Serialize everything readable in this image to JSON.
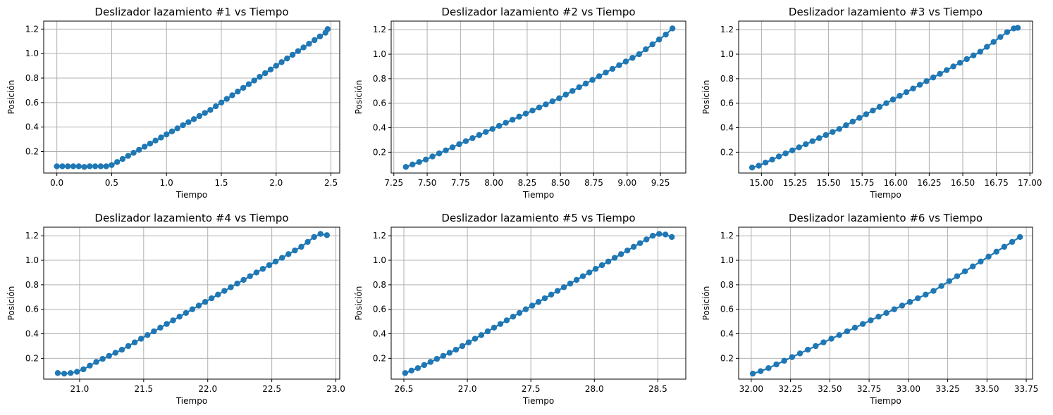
{
  "chart_data": [
    {
      "type": "line",
      "title": "Deslizador lazamiento #1 vs Tiempo",
      "xlabel": "Tiempo",
      "ylabel": "Posición",
      "xlim": [
        -0.12,
        2.58
      ],
      "ylim": [
        0.025,
        1.265
      ],
      "xticks": [
        0.0,
        0.5,
        1.0,
        1.5,
        2.0,
        2.5
      ],
      "xtick_labels": [
        "0.0",
        "0.5",
        "1.0",
        "1.5",
        "2.0",
        "2.5"
      ],
      "yticks": [
        0.2,
        0.4,
        0.6,
        0.8,
        1.0,
        1.2
      ],
      "ytick_labels": [
        "0.2",
        "0.4",
        "0.6",
        "0.8",
        "1.0",
        "1.2"
      ],
      "grid": true,
      "color": "#1f77b4",
      "marker": "circle",
      "series": [
        {
          "x": [
            0.0,
            0.05,
            0.1,
            0.15,
            0.2,
            0.25,
            0.3,
            0.35,
            0.4,
            0.45,
            0.5,
            0.55,
            0.6,
            0.65,
            0.7,
            0.75,
            0.8,
            0.85,
            0.9,
            0.95,
            1.0,
            1.05,
            1.1,
            1.15,
            1.2,
            1.25,
            1.3,
            1.35,
            1.4,
            1.45,
            1.5,
            1.55,
            1.6,
            1.65,
            1.7,
            1.75,
            1.8,
            1.85,
            1.9,
            1.95,
            2.0,
            2.05,
            2.1,
            2.15,
            2.2,
            2.25,
            2.3,
            2.35,
            2.4,
            2.45,
            2.47
          ],
          "y": [
            0.08,
            0.08,
            0.08,
            0.08,
            0.08,
            0.075,
            0.08,
            0.08,
            0.08,
            0.08,
            0.09,
            0.115,
            0.14,
            0.165,
            0.19,
            0.215,
            0.24,
            0.265,
            0.29,
            0.315,
            0.34,
            0.365,
            0.39,
            0.415,
            0.44,
            0.465,
            0.49,
            0.515,
            0.54,
            0.57,
            0.6,
            0.63,
            0.66,
            0.69,
            0.72,
            0.75,
            0.78,
            0.81,
            0.84,
            0.87,
            0.9,
            0.93,
            0.96,
            0.99,
            1.02,
            1.05,
            1.08,
            1.11,
            1.14,
            1.17,
            1.2
          ]
        }
      ]
    },
    {
      "type": "line",
      "title": "Deslizador lazamiento #2 vs Tiempo",
      "xlabel": "Tiempo",
      "ylabel": "Posición",
      "xlim": [
        7.23,
        9.44
      ],
      "ylim": [
        0.03,
        1.27
      ],
      "xticks": [
        7.25,
        7.5,
        7.75,
        8.0,
        8.25,
        8.5,
        8.75,
        9.0,
        9.25
      ],
      "xtick_labels": [
        "7.25",
        "7.50",
        "7.75",
        "8.00",
        "8.25",
        "8.50",
        "8.75",
        "9.00",
        "9.25"
      ],
      "yticks": [
        0.2,
        0.4,
        0.6,
        0.8,
        1.0,
        1.2
      ],
      "ytick_labels": [
        "0.2",
        "0.4",
        "0.6",
        "0.8",
        "1.0",
        "1.2"
      ],
      "grid": true,
      "color": "#1f77b4",
      "marker": "circle",
      "series": [
        {
          "x": [
            7.34,
            7.39,
            7.44,
            7.49,
            7.54,
            7.59,
            7.64,
            7.69,
            7.74,
            7.79,
            7.84,
            7.89,
            7.94,
            7.99,
            8.04,
            8.09,
            8.14,
            8.19,
            8.24,
            8.29,
            8.34,
            8.39,
            8.44,
            8.49,
            8.54,
            8.59,
            8.64,
            8.69,
            8.74,
            8.79,
            8.84,
            8.89,
            8.94,
            8.99,
            9.04,
            9.09,
            9.14,
            9.19,
            9.24,
            9.29,
            9.34
          ],
          "y": [
            0.08,
            0.1,
            0.12,
            0.14,
            0.165,
            0.19,
            0.215,
            0.24,
            0.265,
            0.29,
            0.315,
            0.34,
            0.365,
            0.39,
            0.415,
            0.44,
            0.465,
            0.49,
            0.515,
            0.54,
            0.565,
            0.59,
            0.615,
            0.64,
            0.67,
            0.7,
            0.73,
            0.76,
            0.79,
            0.82,
            0.85,
            0.88,
            0.91,
            0.94,
            0.97,
            1.0,
            1.04,
            1.08,
            1.12,
            1.16,
            1.21
          ]
        }
      ]
    },
    {
      "type": "line",
      "title": "Deslizador lazamiento #3 vs Tiempo",
      "xlabel": "Tiempo",
      "ylabel": "Posición",
      "xlim": [
        14.83,
        17.02
      ],
      "ylim": [
        0.03,
        1.27
      ],
      "xticks": [
        15.0,
        15.25,
        15.5,
        15.75,
        16.0,
        16.25,
        16.5,
        16.75,
        17.0
      ],
      "xtick_labels": [
        "15.00",
        "15.25",
        "15.50",
        "15.75",
        "16.00",
        "16.25",
        "16.50",
        "16.75",
        "17.00"
      ],
      "yticks": [
        0.2,
        0.4,
        0.6,
        0.8,
        1.0,
        1.2
      ],
      "ytick_labels": [
        "0.2",
        "0.4",
        "0.6",
        "0.8",
        "1.0",
        "1.2"
      ],
      "grid": true,
      "color": "#1f77b4",
      "marker": "circle",
      "series": [
        {
          "x": [
            14.93,
            14.98,
            15.03,
            15.08,
            15.13,
            15.18,
            15.23,
            15.28,
            15.33,
            15.38,
            15.43,
            15.48,
            15.53,
            15.58,
            15.63,
            15.68,
            15.73,
            15.78,
            15.83,
            15.88,
            15.93,
            15.98,
            16.03,
            16.08,
            16.13,
            16.18,
            16.23,
            16.28,
            16.33,
            16.38,
            16.43,
            16.48,
            16.53,
            16.58,
            16.63,
            16.68,
            16.73,
            16.78,
            16.83,
            16.88,
            16.91
          ],
          "y": [
            0.075,
            0.09,
            0.115,
            0.14,
            0.165,
            0.19,
            0.215,
            0.24,
            0.265,
            0.29,
            0.315,
            0.34,
            0.365,
            0.39,
            0.42,
            0.45,
            0.48,
            0.51,
            0.54,
            0.57,
            0.6,
            0.63,
            0.66,
            0.69,
            0.72,
            0.75,
            0.78,
            0.81,
            0.84,
            0.87,
            0.9,
            0.93,
            0.96,
            0.99,
            1.02,
            1.06,
            1.1,
            1.14,
            1.18,
            1.21,
            1.215
          ]
        }
      ]
    },
    {
      "type": "line",
      "title": "Deslizador lazamiento #4 vs Tiempo",
      "xlabel": "Tiempo",
      "ylabel": "Posición",
      "xlim": [
        20.72,
        23.03
      ],
      "ylim": [
        0.03,
        1.27
      ],
      "xticks": [
        21.0,
        21.5,
        22.0,
        22.5,
        23.0
      ],
      "xtick_labels": [
        "21.0",
        "21.5",
        "22.0",
        "22.5",
        "23.0"
      ],
      "yticks": [
        0.2,
        0.4,
        0.6,
        0.8,
        1.0,
        1.2
      ],
      "ytick_labels": [
        "0.2",
        "0.4",
        "0.6",
        "0.8",
        "1.0",
        "1.2"
      ],
      "grid": true,
      "color": "#1f77b4",
      "marker": "circle",
      "series": [
        {
          "x": [
            20.83,
            20.88,
            20.93,
            20.98,
            21.03,
            21.08,
            21.13,
            21.18,
            21.23,
            21.28,
            21.33,
            21.38,
            21.43,
            21.48,
            21.53,
            21.58,
            21.63,
            21.68,
            21.73,
            21.78,
            21.83,
            21.88,
            21.93,
            21.98,
            22.03,
            22.08,
            22.13,
            22.18,
            22.23,
            22.28,
            22.33,
            22.38,
            22.43,
            22.48,
            22.53,
            22.58,
            22.63,
            22.68,
            22.73,
            22.78,
            22.83,
            22.88,
            22.93
          ],
          "y": [
            0.08,
            0.075,
            0.08,
            0.09,
            0.11,
            0.14,
            0.17,
            0.195,
            0.22,
            0.245,
            0.27,
            0.3,
            0.33,
            0.36,
            0.39,
            0.42,
            0.45,
            0.48,
            0.51,
            0.54,
            0.57,
            0.6,
            0.63,
            0.66,
            0.69,
            0.72,
            0.75,
            0.78,
            0.81,
            0.84,
            0.87,
            0.9,
            0.93,
            0.96,
            0.99,
            1.02,
            1.05,
            1.08,
            1.11,
            1.15,
            1.19,
            1.215,
            1.205
          ]
        }
      ]
    },
    {
      "type": "line",
      "title": "Deslizador lazamiento #5 vs Tiempo",
      "xlabel": "Tiempo",
      "ylabel": "Posición",
      "xlim": [
        26.4,
        28.72
      ],
      "ylim": [
        0.03,
        1.27
      ],
      "xticks": [
        26.5,
        27.0,
        27.5,
        28.0,
        28.5
      ],
      "xtick_labels": [
        "26.5",
        "27.0",
        "27.5",
        "28.0",
        "28.5"
      ],
      "yticks": [
        0.2,
        0.4,
        0.6,
        0.8,
        1.0,
        1.2
      ],
      "ytick_labels": [
        "0.2",
        "0.4",
        "0.6",
        "0.8",
        "1.0",
        "1.2"
      ],
      "grid": true,
      "color": "#1f77b4",
      "marker": "circle",
      "series": [
        {
          "x": [
            26.51,
            26.56,
            26.61,
            26.66,
            26.71,
            26.76,
            26.81,
            26.86,
            26.91,
            26.96,
            27.01,
            27.06,
            27.11,
            27.16,
            27.21,
            27.26,
            27.31,
            27.36,
            27.41,
            27.46,
            27.51,
            27.56,
            27.61,
            27.66,
            27.71,
            27.76,
            27.81,
            27.86,
            27.91,
            27.96,
            28.01,
            28.06,
            28.11,
            28.16,
            28.21,
            28.26,
            28.31,
            28.36,
            28.41,
            28.46,
            28.51,
            28.56,
            28.61
          ],
          "y": [
            0.08,
            0.1,
            0.12,
            0.145,
            0.17,
            0.195,
            0.22,
            0.245,
            0.27,
            0.3,
            0.33,
            0.36,
            0.39,
            0.42,
            0.45,
            0.48,
            0.51,
            0.54,
            0.57,
            0.6,
            0.63,
            0.66,
            0.69,
            0.72,
            0.75,
            0.78,
            0.81,
            0.84,
            0.87,
            0.9,
            0.93,
            0.96,
            0.99,
            1.02,
            1.05,
            1.08,
            1.11,
            1.14,
            1.17,
            1.2,
            1.215,
            1.21,
            1.19
          ]
        }
      ]
    },
    {
      "type": "line",
      "title": "Deslizador lazamiento #6 vs Tiempo",
      "xlabel": "Tiempo",
      "ylabel": "Posición",
      "xlim": [
        31.92,
        33.79
      ],
      "ylim": [
        0.03,
        1.27
      ],
      "xticks": [
        32.0,
        32.25,
        32.5,
        32.75,
        33.0,
        33.25,
        33.5,
        33.75
      ],
      "xtick_labels": [
        "32.00",
        "32.25",
        "32.50",
        "32.75",
        "33.00",
        "33.25",
        "33.50",
        "33.75"
      ],
      "yticks": [
        0.2,
        0.4,
        0.6,
        0.8,
        1.0,
        1.2
      ],
      "ytick_labels": [
        "0.2",
        "0.4",
        "0.6",
        "0.8",
        "1.0",
        "1.2"
      ],
      "grid": true,
      "color": "#1f77b4",
      "marker": "circle",
      "series": [
        {
          "x": [
            32.01,
            32.06,
            32.11,
            32.16,
            32.21,
            32.26,
            32.31,
            32.36,
            32.41,
            32.46,
            32.51,
            32.56,
            32.61,
            32.66,
            32.71,
            32.76,
            32.81,
            32.86,
            32.91,
            32.96,
            33.01,
            33.06,
            33.11,
            33.16,
            33.21,
            33.26,
            33.31,
            33.36,
            33.41,
            33.46,
            33.51,
            33.56,
            33.61,
            33.66,
            33.71
          ],
          "y": [
            0.075,
            0.095,
            0.12,
            0.15,
            0.18,
            0.21,
            0.24,
            0.27,
            0.3,
            0.33,
            0.36,
            0.39,
            0.42,
            0.45,
            0.48,
            0.51,
            0.54,
            0.57,
            0.6,
            0.63,
            0.66,
            0.69,
            0.72,
            0.75,
            0.79,
            0.83,
            0.87,
            0.91,
            0.95,
            0.99,
            1.03,
            1.07,
            1.11,
            1.15,
            1.19
          ]
        }
      ]
    }
  ]
}
